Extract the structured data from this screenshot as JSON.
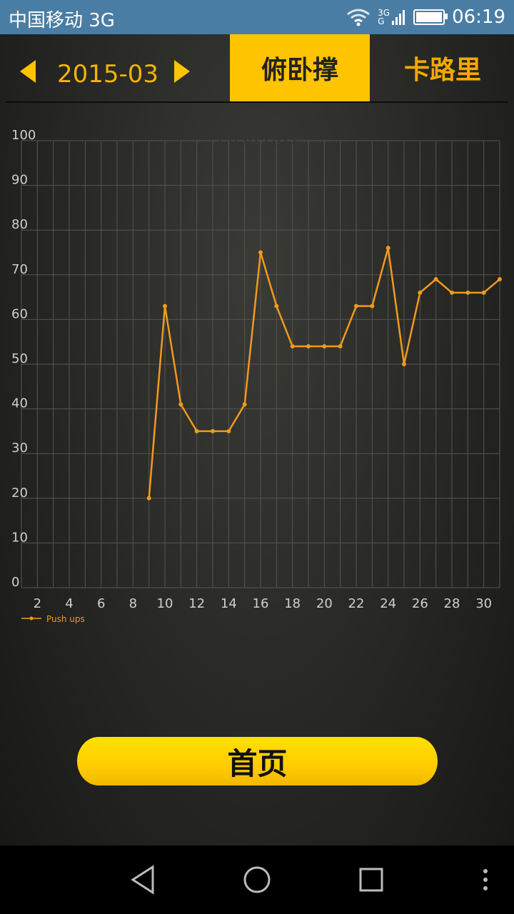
{
  "status_bar": {
    "carrier": "中国移动 3G",
    "network_top": "3G",
    "network_bottom": "G",
    "time": "06:19"
  },
  "header": {
    "month": "2015-03",
    "tab_pushups": "俯卧撑",
    "tab_calories": "卡路里",
    "accent_color": "#ffc400"
  },
  "chart_data": {
    "type": "line",
    "title": "Push Ups",
    "xlabel": "",
    "ylabel": "",
    "xlim": [
      1,
      31
    ],
    "ylim": [
      0,
      100
    ],
    "x_ticks": [
      2,
      4,
      6,
      8,
      10,
      12,
      14,
      16,
      18,
      20,
      22,
      24,
      26,
      28,
      30
    ],
    "y_ticks": [
      0,
      10,
      20,
      30,
      40,
      50,
      60,
      70,
      80,
      90,
      100
    ],
    "grid": true,
    "legend_position": "bottom-left",
    "series": [
      {
        "name": "Push ups",
        "color": "#f09a1c",
        "x": [
          9,
          10,
          11,
          12,
          13,
          14,
          15,
          16,
          17,
          18,
          19,
          20,
          21,
          22,
          23,
          24,
          25,
          26,
          27,
          28,
          29,
          30,
          31
        ],
        "y": [
          20,
          63,
          41,
          35,
          35,
          35,
          41,
          75,
          63,
          54,
          54,
          54,
          54,
          63,
          63,
          76,
          50,
          66,
          69,
          66,
          66,
          66,
          69
        ]
      }
    ]
  },
  "home_button": {
    "label": "首页"
  }
}
